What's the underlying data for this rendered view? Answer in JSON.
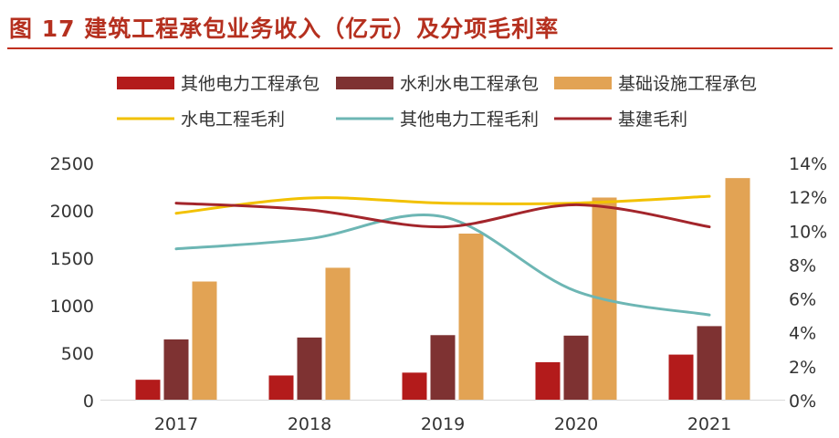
{
  "title": "图 17 建筑工程承包业务收入（亿元）及分项毛利率",
  "colors": {
    "title": "#b5301f",
    "其他电力工程承包": "#b31b1b",
    "水利水电工程承包": "#7e3232",
    "基础设施工程承包": "#e2a354",
    "水电工程毛利": "#f2c100",
    "其他电力工程毛利": "#6db6b4",
    "基建毛利": "#a3252b"
  },
  "chart_data": {
    "type": "bar",
    "categories": [
      "2017",
      "2018",
      "2019",
      "2020",
      "2021"
    ],
    "ylim": [
      0,
      2500
    ],
    "y_ticks": [
      "0",
      "500",
      "1000",
      "1500",
      "2000",
      "2500"
    ],
    "y2lim": [
      0,
      14
    ],
    "y2_ticks": [
      "0%",
      "2%",
      "4%",
      "6%",
      "8%",
      "10%",
      "12%",
      "14%"
    ],
    "grid": false,
    "legend_position": "top",
    "series": [
      {
        "name": "其他电力工程承包",
        "type": "bar",
        "axis": "left",
        "values": [
          210,
          255,
          285,
          395,
          475
        ]
      },
      {
        "name": "水利水电工程承包",
        "type": "bar",
        "axis": "left",
        "values": [
          635,
          655,
          680,
          675,
          775
        ]
      },
      {
        "name": "基础设施工程承包",
        "type": "bar",
        "axis": "left",
        "values": [
          1245,
          1390,
          1750,
          2130,
          2335
        ]
      },
      {
        "name": "水电工程毛利",
        "type": "line",
        "axis": "right",
        "values": [
          11.0,
          11.9,
          11.6,
          11.6,
          12.0
        ]
      },
      {
        "name": "其他电力工程毛利",
        "type": "line",
        "axis": "right",
        "values": [
          8.9,
          9.5,
          10.8,
          6.4,
          5.0
        ]
      },
      {
        "name": "基建毛利",
        "type": "line",
        "axis": "right",
        "values": [
          11.6,
          11.2,
          10.2,
          11.5,
          10.2
        ]
      }
    ]
  }
}
